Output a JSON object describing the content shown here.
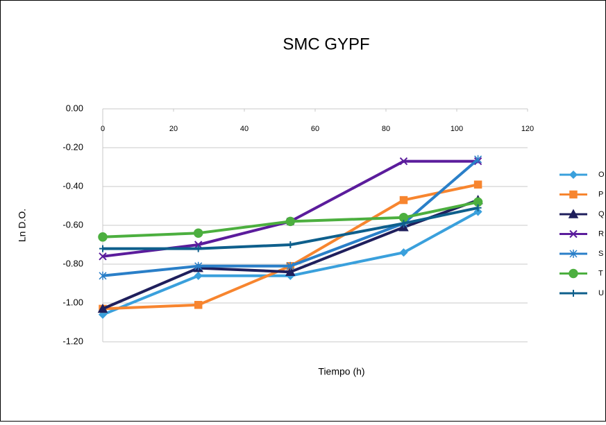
{
  "chart_data": {
    "type": "line",
    "title": "SMC GYPF",
    "xlabel": "Tiempo (h)",
    "ylabel": "Ln D.O.",
    "xlim": [
      0,
      120
    ],
    "xticks": [
      0,
      20,
      40,
      60,
      80,
      100,
      120
    ],
    "ylim": [
      -1.2,
      0
    ],
    "yticks": [
      {
        "value": 0,
        "label": "0.00"
      },
      {
        "value": -0.2,
        "label": "-0.20"
      },
      {
        "value": -0.4,
        "label": "-0.40"
      },
      {
        "value": -0.6,
        "label": "-0.60"
      },
      {
        "value": -0.8,
        "label": "-0.80"
      },
      {
        "value": -1.0,
        "label": "-1.00"
      },
      {
        "value": -1.2,
        "label": "-1.20"
      }
    ],
    "grid": true,
    "legend": "right",
    "x": [
      0,
      27,
      53,
      85,
      106
    ],
    "series": [
      {
        "name": "O",
        "color": "#3aa0dc",
        "marker": "diamond",
        "values": [
          -1.06,
          -0.86,
          -0.86,
          -0.74,
          -0.53
        ]
      },
      {
        "name": "P",
        "color": "#f7852f",
        "marker": "square",
        "values": [
          -1.03,
          -1.01,
          -0.81,
          -0.47,
          -0.39
        ]
      },
      {
        "name": "Q",
        "color": "#1f1f5c",
        "marker": "triangle",
        "values": [
          -1.03,
          -0.82,
          -0.84,
          -0.61,
          -0.47
        ]
      },
      {
        "name": "R",
        "color": "#5b1c9c",
        "marker": "x",
        "values": [
          -0.76,
          -0.7,
          -0.58,
          -0.27,
          -0.27
        ]
      },
      {
        "name": "S",
        "color": "#2a7fc8",
        "marker": "star",
        "values": [
          -0.86,
          -0.81,
          -0.81,
          -0.59,
          -0.26
        ]
      },
      {
        "name": "T",
        "color": "#4caf3f",
        "marker": "circle",
        "values": [
          -0.66,
          -0.64,
          -0.58,
          -0.56,
          -0.48
        ]
      },
      {
        "name": "U",
        "color": "#0e5f8c",
        "marker": "plus",
        "values": [
          -0.72,
          -0.72,
          -0.7,
          -0.59,
          -0.51
        ]
      }
    ]
  }
}
